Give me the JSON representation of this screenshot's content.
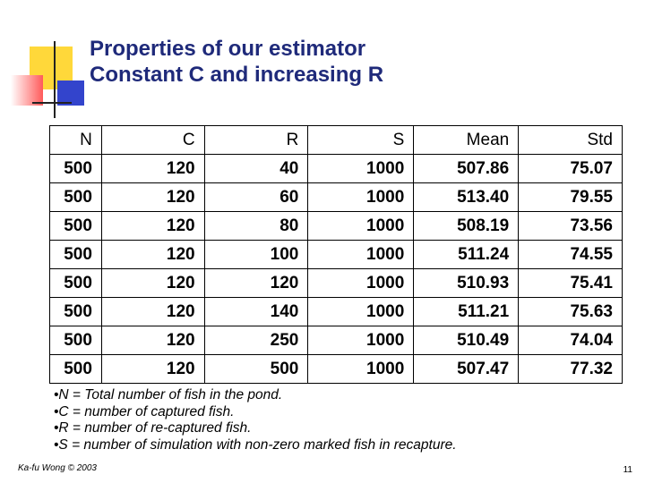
{
  "slide": {
    "title_line1": "Properties of our estimator",
    "title_line2": "Constant C and increasing R",
    "table": {
      "headers": [
        "N",
        "C",
        "R",
        "S",
        "Mean",
        "Std"
      ],
      "rows": [
        [
          "500",
          "120",
          "40",
          "1000",
          "507.86",
          "75.07"
        ],
        [
          "500",
          "120",
          "60",
          "1000",
          "513.40",
          "79.55"
        ],
        [
          "500",
          "120",
          "80",
          "1000",
          "508.19",
          "73.56"
        ],
        [
          "500",
          "120",
          "100",
          "1000",
          "511.24",
          "74.55"
        ],
        [
          "500",
          "120",
          "120",
          "1000",
          "510.93",
          "75.41"
        ],
        [
          "500",
          "120",
          "140",
          "1000",
          "511.21",
          "75.63"
        ],
        [
          "500",
          "120",
          "250",
          "1000",
          "510.49",
          "74.04"
        ],
        [
          "500",
          "120",
          "500",
          "1000",
          "507.47",
          "77.32"
        ]
      ]
    },
    "notes": [
      "•N = Total number of fish in the pond.",
      "•C = number of captured fish.",
      "•R = number of re-captured fish.",
      "•S = number of simulation with non-zero marked fish in recapture."
    ],
    "footer_author": "Ka-fu Wong © 2003",
    "page_number": "11"
  },
  "colors": {
    "title": "#1f2a7a",
    "yellow": "#ffd83a",
    "red": "#ff5a5a",
    "blue": "#3344cc"
  }
}
